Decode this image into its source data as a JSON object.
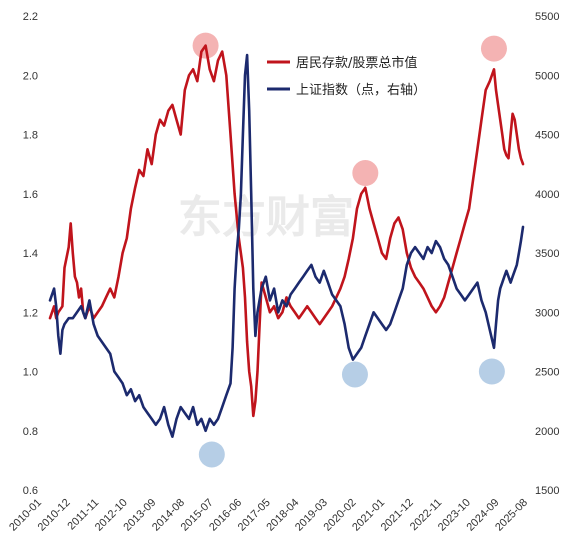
{
  "chart_data": {
    "type": "line",
    "watermark": "东方财富",
    "x_ticks": [
      "2010-01",
      "2010-12",
      "2011-11",
      "2012-10",
      "2013-09",
      "2014-08",
      "2015-07",
      "2016-06",
      "2017-05",
      "2018-04",
      "2019-03",
      "2020-02",
      "2021-01",
      "2021-12",
      "2022-11",
      "2023-10",
      "2024-09",
      "2025-08"
    ],
    "y_left": {
      "ticks": [
        "0.6",
        "0.8",
        "1.0",
        "1.2",
        "1.4",
        "1.6",
        "1.8",
        "2.0",
        "2.2"
      ],
      "range": [
        0.6,
        2.2
      ]
    },
    "y_right": {
      "ticks": [
        "1500",
        "2000",
        "2500",
        "3000",
        "3500",
        "4000",
        "4500",
        "5000",
        "5500"
      ],
      "range": [
        1500,
        5500
      ]
    },
    "grid": false,
    "legend_position": "top-right",
    "colors": {
      "ratio": "#c0141c",
      "index": "#1c2a6e",
      "peak": "#f2a6a6",
      "trough": "#a9c6e2"
    },
    "series": [
      {
        "name": "居民存款/股票总市值",
        "axis": "left",
        "values": [
          [
            0,
            1.18
          ],
          [
            2,
            1.22
          ],
          [
            3,
            1.18
          ],
          [
            4,
            1.2
          ],
          [
            6,
            1.22
          ],
          [
            7,
            1.35
          ],
          [
            9,
            1.42
          ],
          [
            10,
            1.5
          ],
          [
            11,
            1.4
          ],
          [
            12,
            1.32
          ],
          [
            13,
            1.3
          ],
          [
            14,
            1.25
          ],
          [
            15,
            1.28
          ],
          [
            16,
            1.2
          ],
          [
            17,
            1.18
          ],
          [
            19,
            1.22
          ],
          [
            20,
            1.2
          ],
          [
            21,
            1.18
          ],
          [
            23,
            1.2
          ],
          [
            25,
            1.22
          ],
          [
            27,
            1.25
          ],
          [
            29,
            1.28
          ],
          [
            31,
            1.25
          ],
          [
            33,
            1.32
          ],
          [
            35,
            1.4
          ],
          [
            37,
            1.45
          ],
          [
            39,
            1.55
          ],
          [
            41,
            1.62
          ],
          [
            43,
            1.68
          ],
          [
            45,
            1.66
          ],
          [
            47,
            1.75
          ],
          [
            49,
            1.7
          ],
          [
            51,
            1.8
          ],
          [
            53,
            1.85
          ],
          [
            55,
            1.83
          ],
          [
            57,
            1.88
          ],
          [
            59,
            1.9
          ],
          [
            61,
            1.85
          ],
          [
            63,
            1.8
          ],
          [
            65,
            1.95
          ],
          [
            67,
            2.0
          ],
          [
            69,
            2.02
          ],
          [
            71,
            1.98
          ],
          [
            73,
            2.08
          ],
          [
            75,
            2.1
          ],
          [
            77,
            2.02
          ],
          [
            79,
            1.98
          ],
          [
            81,
            2.05
          ],
          [
            83,
            2.08
          ],
          [
            85,
            2.0
          ],
          [
            87,
            1.8
          ],
          [
            89,
            1.6
          ],
          [
            91,
            1.45
          ],
          [
            93,
            1.35
          ],
          [
            94,
            1.25
          ],
          [
            95,
            1.1
          ],
          [
            96,
            1.0
          ],
          [
            97,
            0.95
          ],
          [
            98,
            0.85
          ],
          [
            99,
            0.9
          ],
          [
            100,
            1.0
          ],
          [
            101,
            1.15
          ],
          [
            102,
            1.3
          ],
          [
            104,
            1.25
          ],
          [
            106,
            1.2
          ],
          [
            108,
            1.22
          ],
          [
            110,
            1.18
          ],
          [
            112,
            1.2
          ],
          [
            114,
            1.25
          ],
          [
            116,
            1.22
          ],
          [
            118,
            1.2
          ],
          [
            120,
            1.18
          ],
          [
            122,
            1.2
          ],
          [
            124,
            1.22
          ],
          [
            126,
            1.2
          ],
          [
            128,
            1.18
          ],
          [
            130,
            1.16
          ],
          [
            132,
            1.18
          ],
          [
            134,
            1.2
          ],
          [
            136,
            1.22
          ],
          [
            138,
            1.25
          ],
          [
            140,
            1.28
          ],
          [
            142,
            1.32
          ],
          [
            144,
            1.38
          ],
          [
            146,
            1.45
          ],
          [
            148,
            1.55
          ],
          [
            150,
            1.6
          ],
          [
            152,
            1.62
          ],
          [
            154,
            1.55
          ],
          [
            156,
            1.5
          ],
          [
            158,
            1.45
          ],
          [
            160,
            1.4
          ],
          [
            162,
            1.38
          ],
          [
            164,
            1.45
          ],
          [
            166,
            1.5
          ],
          [
            168,
            1.52
          ],
          [
            170,
            1.48
          ],
          [
            172,
            1.4
          ],
          [
            174,
            1.35
          ],
          [
            176,
            1.32
          ],
          [
            178,
            1.3
          ],
          [
            180,
            1.28
          ],
          [
            182,
            1.25
          ],
          [
            184,
            1.22
          ],
          [
            186,
            1.2
          ],
          [
            188,
            1.22
          ],
          [
            190,
            1.25
          ],
          [
            192,
            1.3
          ],
          [
            194,
            1.35
          ],
          [
            196,
            1.4
          ],
          [
            198,
            1.45
          ],
          [
            200,
            1.5
          ],
          [
            202,
            1.55
          ],
          [
            204,
            1.65
          ],
          [
            206,
            1.75
          ],
          [
            208,
            1.85
          ],
          [
            210,
            1.95
          ],
          [
            212,
            1.98
          ],
          [
            214,
            2.02
          ],
          [
            215,
            1.95
          ],
          [
            216,
            1.9
          ],
          [
            217,
            1.85
          ],
          [
            218,
            1.8
          ],
          [
            219,
            1.75
          ],
          [
            220,
            1.73
          ],
          [
            221,
            1.72
          ],
          [
            222,
            1.8
          ],
          [
            223,
            1.87
          ],
          [
            224,
            1.85
          ],
          [
            225,
            1.8
          ],
          [
            226,
            1.75
          ],
          [
            227,
            1.72
          ],
          [
            228,
            1.7
          ]
        ]
      },
      {
        "name": "上证指数（点，右轴）",
        "axis": "right",
        "values": [
          [
            0,
            3100
          ],
          [
            2,
            3200
          ],
          [
            3,
            3050
          ],
          [
            4,
            2800
          ],
          [
            5,
            2650
          ],
          [
            6,
            2850
          ],
          [
            7,
            2900
          ],
          [
            9,
            2950
          ],
          [
            11,
            2950
          ],
          [
            13,
            3000
          ],
          [
            15,
            3050
          ],
          [
            17,
            2950
          ],
          [
            19,
            3100
          ],
          [
            21,
            2900
          ],
          [
            23,
            2800
          ],
          [
            25,
            2750
          ],
          [
            27,
            2700
          ],
          [
            29,
            2650
          ],
          [
            31,
            2500
          ],
          [
            33,
            2450
          ],
          [
            35,
            2400
          ],
          [
            37,
            2300
          ],
          [
            39,
            2350
          ],
          [
            41,
            2250
          ],
          [
            43,
            2300
          ],
          [
            45,
            2200
          ],
          [
            47,
            2150
          ],
          [
            49,
            2100
          ],
          [
            51,
            2050
          ],
          [
            53,
            2100
          ],
          [
            55,
            2200
          ],
          [
            57,
            2050
          ],
          [
            59,
            1950
          ],
          [
            61,
            2100
          ],
          [
            63,
            2200
          ],
          [
            65,
            2150
          ],
          [
            67,
            2100
          ],
          [
            69,
            2200
          ],
          [
            71,
            2050
          ],
          [
            73,
            2100
          ],
          [
            75,
            2000
          ],
          [
            77,
            2100
          ],
          [
            79,
            2050
          ],
          [
            81,
            2100
          ],
          [
            83,
            2200
          ],
          [
            85,
            2300
          ],
          [
            87,
            2400
          ],
          [
            88,
            2700
          ],
          [
            89,
            3200
          ],
          [
            90,
            3500
          ],
          [
            91,
            3700
          ],
          [
            92,
            4000
          ],
          [
            93,
            4500
          ],
          [
            94,
            5000
          ],
          [
            95,
            5170
          ],
          [
            96,
            4700
          ],
          [
            97,
            4000
          ],
          [
            98,
            3200
          ],
          [
            99,
            2800
          ],
          [
            100,
            3000
          ],
          [
            101,
            3100
          ],
          [
            102,
            3200
          ],
          [
            104,
            3300
          ],
          [
            106,
            3100
          ],
          [
            108,
            3200
          ],
          [
            110,
            3000
          ],
          [
            112,
            3100
          ],
          [
            114,
            3050
          ],
          [
            116,
            3150
          ],
          [
            118,
            3200
          ],
          [
            120,
            3250
          ],
          [
            122,
            3300
          ],
          [
            124,
            3350
          ],
          [
            126,
            3400
          ],
          [
            128,
            3300
          ],
          [
            130,
            3250
          ],
          [
            132,
            3350
          ],
          [
            134,
            3250
          ],
          [
            136,
            3150
          ],
          [
            138,
            3100
          ],
          [
            140,
            3050
          ],
          [
            142,
            2900
          ],
          [
            144,
            2700
          ],
          [
            146,
            2600
          ],
          [
            148,
            2650
          ],
          [
            150,
            2700
          ],
          [
            152,
            2800
          ],
          [
            154,
            2900
          ],
          [
            156,
            3000
          ],
          [
            158,
            2950
          ],
          [
            160,
            2900
          ],
          [
            162,
            2850
          ],
          [
            164,
            2900
          ],
          [
            166,
            3000
          ],
          [
            168,
            3100
          ],
          [
            170,
            3200
          ],
          [
            172,
            3400
          ],
          [
            174,
            3500
          ],
          [
            176,
            3550
          ],
          [
            178,
            3500
          ],
          [
            180,
            3450
          ],
          [
            182,
            3550
          ],
          [
            184,
            3500
          ],
          [
            186,
            3600
          ],
          [
            188,
            3550
          ],
          [
            190,
            3450
          ],
          [
            192,
            3400
          ],
          [
            194,
            3300
          ],
          [
            196,
            3200
          ],
          [
            198,
            3150
          ],
          [
            200,
            3100
          ],
          [
            202,
            3150
          ],
          [
            204,
            3200
          ],
          [
            206,
            3250
          ],
          [
            208,
            3100
          ],
          [
            210,
            3000
          ],
          [
            212,
            2850
          ],
          [
            214,
            2700
          ],
          [
            215,
            2900
          ],
          [
            216,
            3100
          ],
          [
            217,
            3200
          ],
          [
            218,
            3250
          ],
          [
            219,
            3300
          ],
          [
            220,
            3350
          ],
          [
            221,
            3300
          ],
          [
            222,
            3250
          ],
          [
            223,
            3300
          ],
          [
            224,
            3350
          ],
          [
            225,
            3400
          ],
          [
            226,
            3500
          ],
          [
            227,
            3600
          ],
          [
            228,
            3720
          ]
        ]
      }
    ],
    "highlights": [
      {
        "type": "peak",
        "x": 75,
        "y": 2.1
      },
      {
        "type": "peak",
        "x": 152,
        "y": 1.67
      },
      {
        "type": "peak",
        "x": 214,
        "y": 2.09
      },
      {
        "type": "trough",
        "x": 78,
        "y": 0.72
      },
      {
        "type": "trough",
        "x": 147,
        "y": 0.99
      },
      {
        "type": "trough",
        "x": 213,
        "y": 1.0
      }
    ]
  }
}
